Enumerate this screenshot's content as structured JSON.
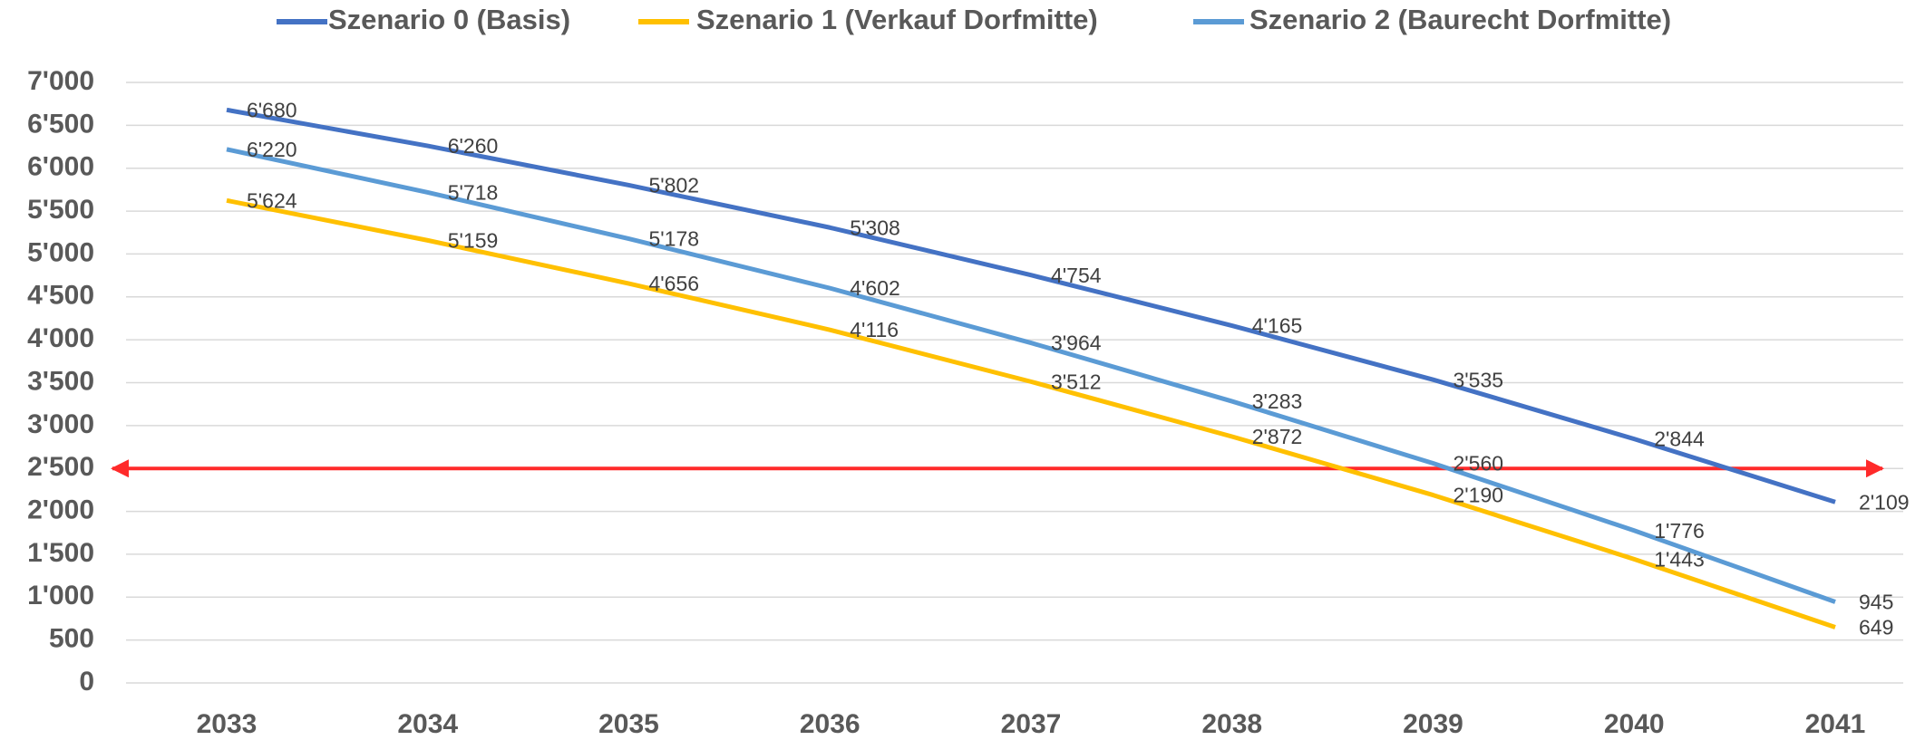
{
  "chart_data": {
    "type": "line",
    "categories": [
      "2033",
      "2034",
      "2035",
      "2036",
      "2037",
      "2038",
      "2039",
      "2040",
      "2041"
    ],
    "series": [
      {
        "name": "Szenario 0 (Basis)",
        "color": "#4472c4",
        "values": [
          6680,
          6260,
          5802,
          5308,
          4754,
          4165,
          3535,
          2844,
          2109
        ],
        "value_labels": [
          "6'680",
          "6'260",
          "5'802",
          "5'308",
          "4'754",
          "4'165",
          "3'535",
          "2'844",
          "2'109"
        ]
      },
      {
        "name": "Szenario 1 (Verkauf Dorfmitte)",
        "color": "#ffc000",
        "values": [
          5624,
          5159,
          4656,
          4116,
          3512,
          2872,
          2190,
          1443,
          649
        ],
        "value_labels": [
          "5'624",
          "5'159",
          "4'656",
          "4'116",
          "3'512",
          "2'872",
          "2'190",
          "1'443",
          "649"
        ]
      },
      {
        "name": "Szenario 2 (Baurecht Dorfmitte)",
        "color": "#5b9bd5",
        "values": [
          6220,
          5718,
          5178,
          4602,
          3964,
          3283,
          2560,
          1776,
          945
        ],
        "value_labels": [
          "6'220",
          "5'718",
          "5'178",
          "4'602",
          "3'964",
          "3'283",
          "2'560",
          "1'776",
          "945"
        ]
      }
    ],
    "ylim": [
      0,
      7000
    ],
    "yticks": [
      0,
      500,
      {
        "value": 1000,
        "label": "1'000"
      },
      {
        "value": 1500,
        "label": "1'500"
      },
      {
        "value": 2000,
        "label": "2'000"
      },
      {
        "value": 2500,
        "label": "2'500"
      },
      {
        "value": 3000,
        "label": "3'000"
      },
      {
        "value": 3500,
        "label": "3'500"
      },
      {
        "value": 4000,
        "label": "4'000"
      },
      {
        "value": 4500,
        "label": "4'500"
      },
      {
        "value": 5000,
        "label": "5'000"
      },
      {
        "value": 5500,
        "label": "5'500"
      },
      {
        "value": 6000,
        "label": "6'000"
      },
      {
        "value": 6500,
        "label": "6'500"
      },
      {
        "value": 7000,
        "label": "7'000"
      }
    ],
    "grid": true,
    "legend": "top",
    "reference_line": {
      "value": 2500,
      "color": "#ff2a2a"
    }
  }
}
